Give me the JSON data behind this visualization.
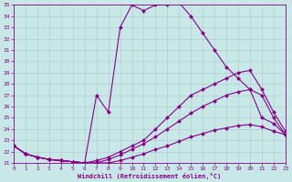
{
  "xlabel": "Windchill (Refroidissement éolien,°C)",
  "bg_color": "#c8e8e8",
  "grid_color": "#a8c8cc",
  "line_color": "#880088",
  "xlim": [
    0,
    23
  ],
  "ylim": [
    21,
    35
  ],
  "xticks": [
    0,
    1,
    2,
    3,
    4,
    5,
    6,
    7,
    8,
    9,
    10,
    11,
    12,
    13,
    14,
    15,
    16,
    17,
    18,
    19,
    20,
    21,
    22,
    23
  ],
  "yticks": [
    21,
    22,
    23,
    24,
    25,
    26,
    27,
    28,
    29,
    30,
    31,
    32,
    33,
    34,
    35
  ],
  "lines": [
    {
      "x": [
        0,
        1,
        2,
        3,
        4,
        5,
        6,
        7,
        8,
        9,
        10,
        11,
        12,
        13,
        14,
        15,
        16,
        17,
        18,
        19,
        20,
        21,
        22,
        23
      ],
      "y": [
        22.5,
        21.8,
        21.5,
        21.3,
        21.2,
        21.1,
        21.0,
        27.0,
        25.5,
        33.0,
        35.0,
        34.5,
        35.0,
        35.0,
        35.2,
        34.0,
        32.5,
        31.0,
        29.5,
        28.5,
        27.5,
        25.0,
        24.5,
        23.5
      ]
    },
    {
      "x": [
        0,
        1,
        2,
        3,
        4,
        5,
        6,
        7,
        8,
        9,
        10,
        11,
        12,
        13,
        14,
        15,
        16,
        17,
        18,
        19,
        20,
        21,
        22,
        23
      ],
      "y": [
        22.5,
        21.8,
        21.5,
        21.3,
        21.2,
        21.1,
        21.0,
        21.2,
        21.5,
        22.0,
        22.5,
        23.0,
        24.0,
        25.0,
        26.0,
        27.0,
        27.5,
        28.0,
        28.5,
        29.0,
        29.2,
        27.5,
        25.5,
        23.8
      ]
    },
    {
      "x": [
        0,
        1,
        2,
        3,
        4,
        5,
        6,
        7,
        8,
        9,
        10,
        11,
        12,
        13,
        14,
        15,
        16,
        17,
        18,
        19,
        20,
        21,
        22,
        23
      ],
      "y": [
        22.5,
        21.8,
        21.5,
        21.3,
        21.2,
        21.1,
        21.0,
        21.0,
        21.3,
        21.7,
        22.2,
        22.7,
        23.3,
        24.0,
        24.7,
        25.4,
        26.0,
        26.5,
        27.0,
        27.3,
        27.5,
        27.0,
        25.0,
        23.5
      ]
    },
    {
      "x": [
        0,
        1,
        2,
        3,
        4,
        5,
        6,
        7,
        8,
        9,
        10,
        11,
        12,
        13,
        14,
        15,
        16,
        17,
        18,
        19,
        20,
        21,
        22,
        23
      ],
      "y": [
        22.5,
        21.8,
        21.5,
        21.3,
        21.2,
        21.1,
        21.0,
        21.0,
        21.0,
        21.2,
        21.5,
        21.8,
        22.2,
        22.5,
        22.9,
        23.3,
        23.6,
        23.9,
        24.1,
        24.3,
        24.4,
        24.2,
        23.8,
        23.5
      ]
    }
  ]
}
